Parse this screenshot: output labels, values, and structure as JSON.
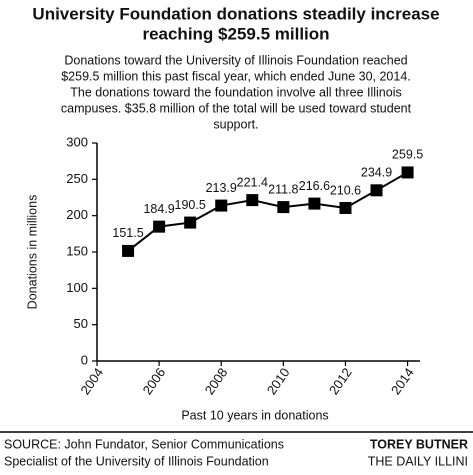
{
  "chart_data": {
    "type": "line",
    "title_lines": [
      "University Foundation donations steadily increase",
      "reaching $259.5 million"
    ],
    "subtitle_lines": [
      "Donations toward the University of Illinois Foundation reached",
      "$259.5 million this past fiscal year, which ended June 30, 2014.",
      "The donations toward the foundation involve all three Illinois",
      "campuses. $35.8 million of the total will be used toward student",
      "support."
    ],
    "y_label": "Donations in millions",
    "x_label": "Past 10 years in donations",
    "x": [
      2005,
      2006,
      2007,
      2008,
      2009,
      2010,
      2011,
      2012,
      2013,
      2014
    ],
    "series": [
      {
        "name": "Donations",
        "color": "#000000",
        "values": [
          151.5,
          184.9,
          190.5,
          213.9,
          221.4,
          211.8,
          216.6,
          210.6,
          234.9,
          259.5
        ]
      }
    ],
    "xlim": [
      2004,
      2014.4
    ],
    "xticks": [
      2004,
      2006,
      2008,
      2010,
      2012,
      2014
    ],
    "ylim": [
      0,
      300
    ],
    "yticks": [
      0,
      50,
      100,
      150,
      200,
      250,
      300
    ],
    "grid": false,
    "source_lines": [
      "SOURCE: John Fundator, Senior Communications",
      "Specialist of the University of Illinois Foundation"
    ],
    "credit_lines": [
      "TOREY BUTNER",
      "THE DAILY ILLINI"
    ]
  }
}
